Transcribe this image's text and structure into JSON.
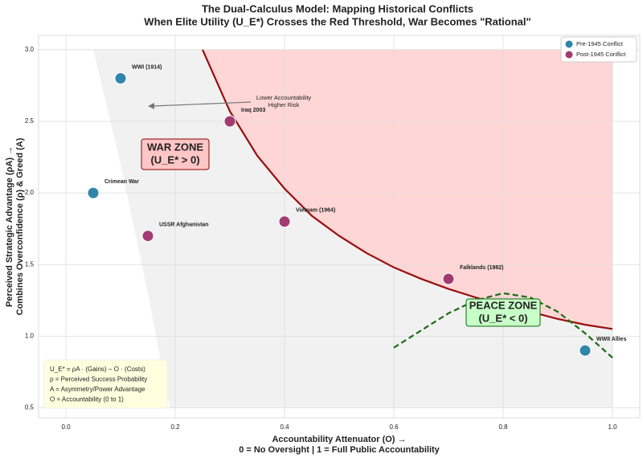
{
  "chart_data": {
    "type": "scatter",
    "title": "The Dual-Calculus Model: Mapping Historical Conflicts",
    "subtitle": "When Elite Utility (U_E*) Crosses the Red Threshold, War Becomes \"Rational\"",
    "x_label": "Accountability Attenuator (O) →",
    "x_sublabel": "0 = No Oversight | 1 = Full Public Accountability",
    "y_label": "Perceived Strategic Advantage (ρA) →",
    "y_sublabel": "Combines Overconfidence (ρ) & Greed (A)",
    "xlim": [
      -0.05,
      1.05
    ],
    "ylim": [
      0.43,
      3.1
    ],
    "xticks": [
      {
        "value": 0,
        "label": "0.0"
      },
      0.2,
      0.4,
      0.6,
      0.8,
      {
        "value": 1,
        "label": "1.0"
      }
    ],
    "yticks": [
      0.5,
      {
        "value": 1,
        "label": "1.0"
      },
      1.5,
      {
        "value": 2,
        "label": "2.0"
      },
      2.5,
      {
        "value": 3,
        "label": "3.0"
      }
    ],
    "grid": true,
    "legend": "upper right",
    "regions": [
      {
        "color": "#f1f1f1",
        "x": [
          0.05,
          0.1,
          0.15,
          0.19,
          1.0,
          1.0
        ],
        "values": [
          3.0,
          2.2,
          1.3,
          0.5,
          0.5,
          3.0
        ]
      }
    ],
    "curves": [
      {
        "color": "#9b0d0d",
        "fill": "#ffd6d6",
        "fill_above_to": 3.0,
        "x": [
          0.25,
          0.3,
          0.35,
          0.4,
          0.45,
          0.5,
          0.55,
          0.6,
          0.65,
          0.7,
          0.75,
          0.8,
          0.85,
          0.9,
          0.95,
          1.0
        ],
        "values": [
          3.0,
          2.57,
          2.26,
          2.03,
          1.84,
          1.7,
          1.58,
          1.48,
          1.4,
          1.33,
          1.27,
          1.21,
          1.17,
          1.12,
          1.08,
          1.05
        ]
      },
      {
        "color": "#1a6b12",
        "dashed": true,
        "x": [
          0.6,
          0.65,
          0.7,
          0.75,
          0.8,
          0.85,
          0.9,
          0.95,
          1.0
        ],
        "values": [
          0.92,
          1.04,
          1.16,
          1.25,
          1.3,
          1.27,
          1.17,
          1.02,
          0.85
        ]
      }
    ],
    "series": [
      {
        "name": "Pre-1945 Conflict",
        "color": "#2e86ab",
        "x": [
          0.1,
          0.05,
          0.95
        ],
        "values": [
          2.8,
          2.0,
          0.9
        ],
        "point_labels": [
          "WWI (1914)",
          "Crimean War",
          "WWII Allies"
        ]
      },
      {
        "name": "Post-1945 Conflict",
        "color": "#a23b72",
        "x": [
          0.3,
          0.15,
          0.4,
          0.7
        ],
        "values": [
          2.5,
          1.7,
          1.8,
          1.4
        ],
        "point_labels": [
          "Iraq 2003",
          "USSR Afghanistan",
          "Vietnam (1964)",
          "Falklands (1982)"
        ]
      }
    ],
    "annotations": {
      "war_zone": [
        "WAR ZONE",
        "(U_E* > 0)"
      ],
      "peace_zone": [
        "PEACE ZONE",
        "(U_E* < 0)"
      ],
      "arrow_note": [
        "Lower Accountability",
        "Higher Risk"
      ]
    },
    "formula_box": [
      "U_E* = ρA · (Gains) − O · (Costs)",
      "ρ = Perceived Success Probability",
      "A = Asymmetry/Power Advantage",
      "O = Accountability (0 to 1)"
    ]
  }
}
